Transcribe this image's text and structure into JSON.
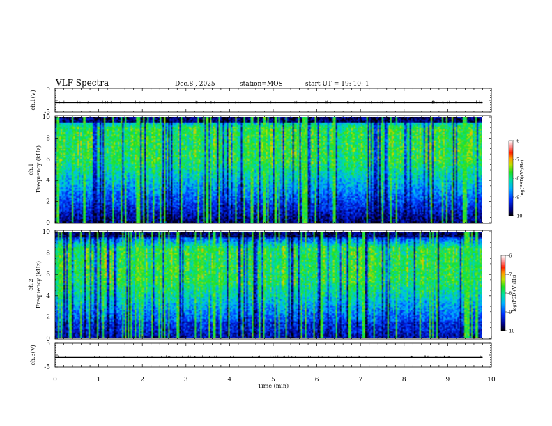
{
  "header": {
    "title": "VLF Spectra",
    "date": "Dec.8 , 2025",
    "station": "station=MOS",
    "start": "start UT =  19: 10: 1"
  },
  "chart_data": [
    {
      "type": "line",
      "name": "ch1-waveform",
      "ylabel": "ch.1(V)",
      "ylim": [
        -5,
        5
      ],
      "yticks": [
        5,
        -5
      ],
      "series": [
        {
          "name": "ch.1",
          "level": -1,
          "duration": [
            0,
            9.8
          ]
        }
      ]
    },
    {
      "type": "heatmap",
      "name": "ch1-spectrogram",
      "ylabel_lines": [
        "ch.1",
        "Frequency (kHz)"
      ],
      "ylim": [
        0,
        10
      ],
      "yticks": [
        0,
        2,
        4,
        6,
        8,
        10
      ],
      "xlim": [
        0,
        10
      ],
      "data_extent_min": 9.8,
      "band_kHz": [
        6,
        9
      ],
      "colorbar": {
        "label": "log(PSD)(V²/Hz)",
        "ticks": [
          -6,
          -7,
          -8,
          -9,
          -10
        ],
        "range": [
          -10,
          -6
        ]
      }
    },
    {
      "type": "heatmap",
      "name": "ch2-spectrogram",
      "ylabel_lines": [
        "ch.2",
        "Frequency (kHz)"
      ],
      "ylim": [
        0,
        10
      ],
      "yticks": [
        0,
        2,
        4,
        6,
        8,
        10
      ],
      "xlim": [
        0,
        10
      ],
      "data_extent_min": 9.8,
      "band_kHz": [
        5.5,
        8.5
      ],
      "colorbar": {
        "label": "log(PSD)(V²/Hz)",
        "ticks": [
          -6,
          -7,
          -8,
          -9,
          -10
        ],
        "range": [
          -10,
          -6
        ]
      }
    },
    {
      "type": "line",
      "name": "ch3-waveform",
      "ylabel": "ch.3(V)",
      "ylim": [
        -5,
        5
      ],
      "yticks": [
        5,
        -5
      ],
      "series": [
        {
          "name": "ch.3",
          "level": -1,
          "duration": [
            0,
            9.8
          ]
        }
      ]
    }
  ],
  "xaxis": {
    "label": "Time (min)",
    "ticks": [
      "0",
      "1",
      "2",
      "3",
      "4",
      "5",
      "6",
      "7",
      "8",
      "9",
      "10"
    ]
  }
}
